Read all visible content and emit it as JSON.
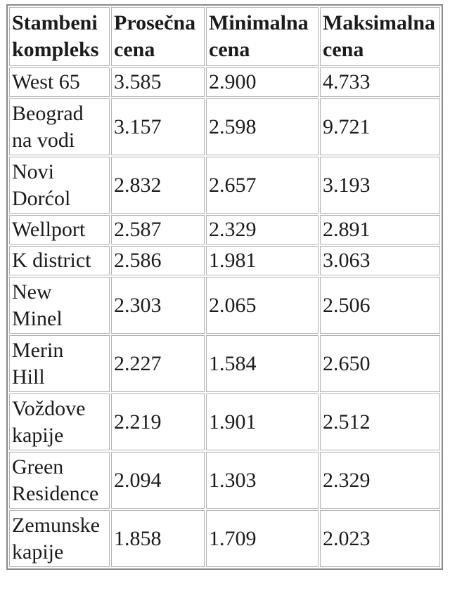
{
  "table": {
    "columns": [
      "Stambeni\nkompleks",
      "Prosečna\ncena",
      "Minimalna\ncena",
      "Maksimalna\ncena"
    ],
    "rows": [
      {
        "name": "West 65",
        "avg": "3.585",
        "min": "2.900",
        "max": "4.733"
      },
      {
        "name": "Beograd\nna vodi",
        "avg": "3.157",
        "min": "2.598",
        "max": "9.721"
      },
      {
        "name": "Novi\nDorćol",
        "avg": "2.832",
        "min": "2.657",
        "max": "3.193"
      },
      {
        "name": "Wellport",
        "avg": "2.587",
        "min": "2.329",
        "max": "2.891"
      },
      {
        "name": "K district",
        "avg": "2.586",
        "min": "1.981",
        "max": "3.063"
      },
      {
        "name": "New\nMinel",
        "avg": "2.303",
        "min": "2.065",
        "max": "2.506"
      },
      {
        "name": "Merin\nHill",
        "avg": "2.227",
        "min": "1.584",
        "max": "2.650"
      },
      {
        "name": "Voždove\nkapije",
        "avg": "2.219",
        "min": "1.901",
        "max": "2.512"
      },
      {
        "name": "Green\nResidence",
        "avg": "2.094",
        "min": "1.303",
        "max": "2.329"
      },
      {
        "name": "Zemunske\nkapije",
        "avg": "1.858",
        "min": "1.709",
        "max": "2.023"
      }
    ],
    "colors": {
      "text": "#1b1b1b",
      "outer_border": "#8a8a8a",
      "cell_border": "#b2b2b2",
      "background": "#ffffff"
    }
  }
}
